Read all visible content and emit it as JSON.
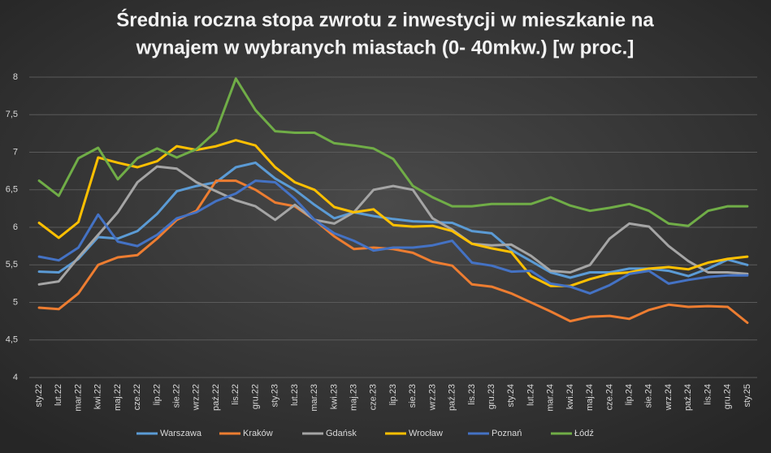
{
  "chart_data": {
    "type": "line",
    "title": [
      "Średnia roczna stopa zwrotu z inwestycji w mieszkanie na",
      "wynajem w wybranych miastach (0- 40mkw.) [w proc.]"
    ],
    "categories": [
      "sty.22",
      "lut.22",
      "mar.22",
      "kwi.22",
      "maj.22",
      "cze.22",
      "lip.22",
      "sie.22",
      "wrz.22",
      "paź.22",
      "lis.22",
      "gru.22",
      "sty.23",
      "lut.23",
      "mar.23",
      "kwi.23",
      "maj.23",
      "cze.23",
      "lip.23",
      "sie.23",
      "wrz.23",
      "paź.23",
      "lis.23",
      "gru.23",
      "sty.24",
      "lut.24",
      "mar.24",
      "kwi.24",
      "maj.24",
      "cze.24",
      "lip.24",
      "sie.24",
      "wrz.24",
      "paź.24",
      "lis.24",
      "gru.24",
      "sty.25"
    ],
    "series": [
      {
        "name": "Warszawa",
        "color": "#5b9bd5",
        "values": [
          5.41,
          5.4,
          5.58,
          5.87,
          5.85,
          5.95,
          6.18,
          6.48,
          6.55,
          6.6,
          6.8,
          6.86,
          6.65,
          6.5,
          6.3,
          6.12,
          6.2,
          6.15,
          6.11,
          6.08,
          6.07,
          6.06,
          5.95,
          5.92,
          5.7,
          5.55,
          5.4,
          5.33,
          5.4,
          5.4,
          5.45,
          5.45,
          5.42,
          5.35,
          5.45,
          5.57,
          5.5
        ]
      },
      {
        "name": "Kraków",
        "color": "#ed7d31",
        "values": [
          4.93,
          4.91,
          5.12,
          5.5,
          5.6,
          5.63,
          5.85,
          6.1,
          6.22,
          6.62,
          6.62,
          6.5,
          6.33,
          6.28,
          6.1,
          5.88,
          5.71,
          5.73,
          5.71,
          5.66,
          5.54,
          5.49,
          5.24,
          5.21,
          5.12,
          5.0,
          4.88,
          4.75,
          4.81,
          4.82,
          4.78,
          4.9,
          4.97,
          4.94,
          4.95,
          4.94,
          4.73
        ]
      },
      {
        "name": "Gdańsk",
        "color": "#a5a5a5",
        "values": [
          5.24,
          5.28,
          5.6,
          5.9,
          6.2,
          6.6,
          6.81,
          6.78,
          6.6,
          6.48,
          6.36,
          6.28,
          6.1,
          6.3,
          6.1,
          6.05,
          6.2,
          6.5,
          6.55,
          6.5,
          6.12,
          5.97,
          5.78,
          5.76,
          5.77,
          5.62,
          5.42,
          5.4,
          5.5,
          5.85,
          6.05,
          6.01,
          5.75,
          5.55,
          5.4,
          5.4,
          5.38
        ]
      },
      {
        "name": "Wrocław",
        "color": "#ffc000",
        "values": [
          6.06,
          5.86,
          6.07,
          6.93,
          6.86,
          6.8,
          6.88,
          7.08,
          7.03,
          7.08,
          7.16,
          7.09,
          6.8,
          6.6,
          6.5,
          6.27,
          6.2,
          6.24,
          6.03,
          6.01,
          6.02,
          5.95,
          5.78,
          5.72,
          5.67,
          5.35,
          5.22,
          5.22,
          5.31,
          5.38,
          5.4,
          5.45,
          5.47,
          5.44,
          5.53,
          5.58,
          5.61
        ]
      },
      {
        "name": "Poznań",
        "color": "#4472c4",
        "values": [
          5.61,
          5.56,
          5.73,
          6.17,
          5.81,
          5.75,
          5.9,
          6.12,
          6.2,
          6.35,
          6.45,
          6.62,
          6.6,
          6.38,
          6.1,
          5.92,
          5.82,
          5.69,
          5.73,
          5.73,
          5.76,
          5.82,
          5.53,
          5.49,
          5.41,
          5.42,
          5.25,
          5.21,
          5.12,
          5.23,
          5.38,
          5.42,
          5.25,
          5.3,
          5.34,
          5.36,
          5.36
        ]
      },
      {
        "name": "Łódź",
        "color": "#70ad47",
        "values": [
          6.62,
          6.42,
          6.92,
          7.06,
          6.64,
          6.92,
          7.05,
          6.93,
          7.04,
          7.28,
          7.98,
          7.56,
          7.28,
          7.26,
          7.26,
          7.12,
          7.09,
          7.05,
          6.91,
          6.55,
          6.4,
          6.28,
          6.28,
          6.31,
          6.31,
          6.31,
          6.4,
          6.29,
          6.22,
          6.26,
          6.31,
          6.22,
          6.05,
          6.02,
          6.22,
          6.28,
          6.28
        ]
      }
    ],
    "ylim": [
      4,
      8
    ],
    "yticks": [
      4,
      {
        "value": 4.5,
        "label": "4,5"
      },
      5,
      {
        "value": 5.5,
        "label": "5,5"
      },
      6,
      {
        "value": 6.5,
        "label": "6,5"
      },
      7,
      {
        "value": 7.5,
        "label": "7,5"
      },
      8
    ],
    "grid": true,
    "legend": "bottom"
  }
}
